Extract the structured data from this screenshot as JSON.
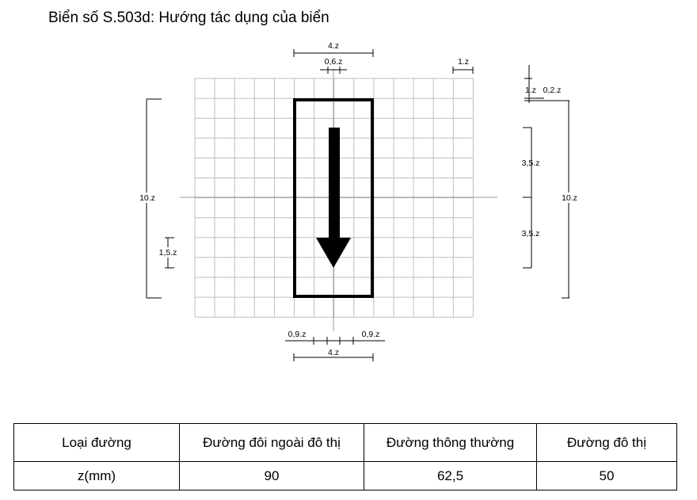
{
  "title": "Biển số S.503d: Hướng tác dụng của biển",
  "dimensions": {
    "top_width": "4.z",
    "top_shaft": "0,6.z",
    "top_cell": "1.z",
    "right_cell": "1.z",
    "right_border": "0,2.z",
    "right_upper": "3,5.z",
    "right_lower": "3,5.z",
    "right_total": "10.z",
    "left_total": "10.z",
    "left_head": "1,5.z",
    "bottom_left": "0,9.z",
    "bottom_right": "0,9.z",
    "bottom_width": "4.z"
  },
  "table": {
    "headers": [
      "Loại đường",
      "Đường đôi ngoài đô thị",
      "Đường thông thường",
      "Đường đô thị"
    ],
    "row_label": "z(mm)",
    "values": [
      "90",
      "62,5",
      "50"
    ]
  }
}
